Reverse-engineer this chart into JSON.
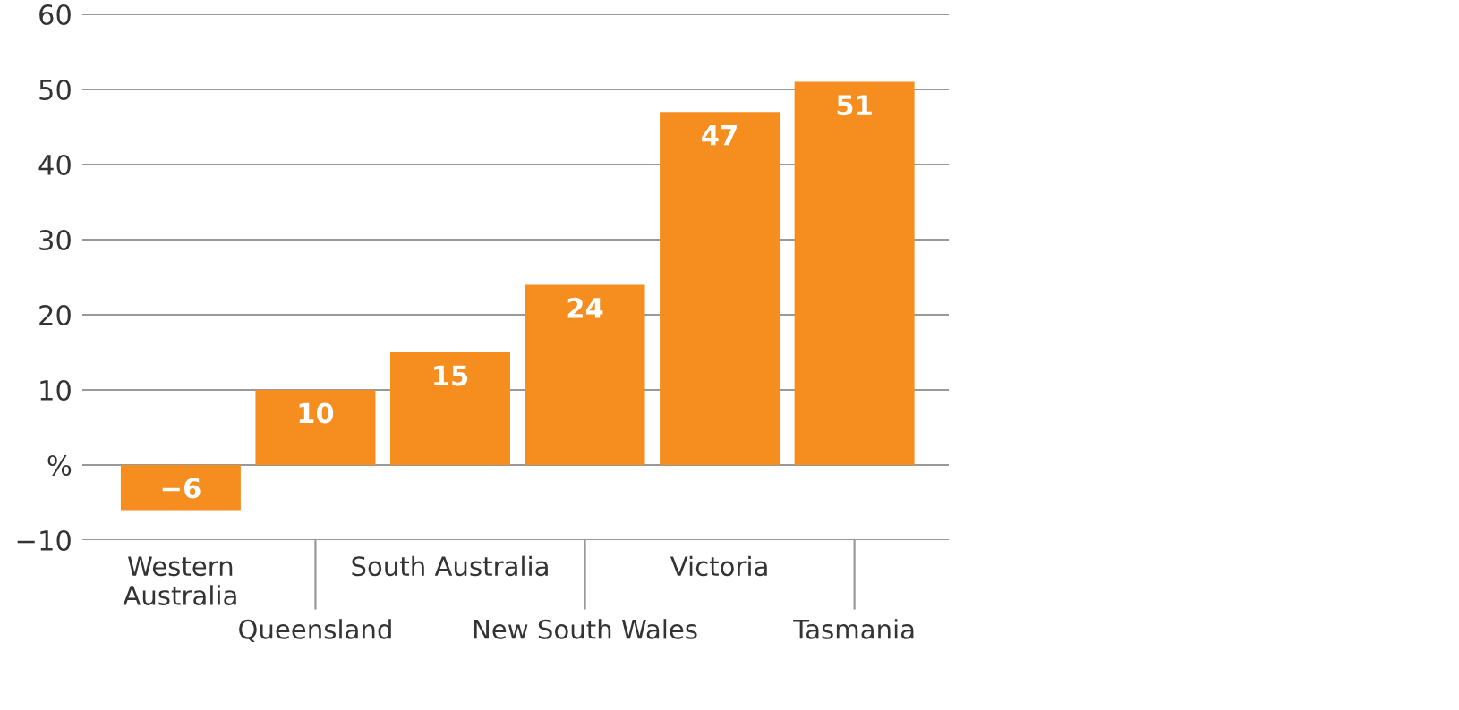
{
  "chart_data": {
    "type": "bar",
    "categories": [
      "Western\nAustralia",
      "Queensland",
      "South Australia",
      "New South Wales",
      "Victoria",
      "Tasmania"
    ],
    "values": [
      -6,
      10,
      15,
      24,
      47,
      51
    ],
    "color": "#f58d1f",
    "value_labels": [
      "−6",
      "10",
      "15",
      "24",
      "47",
      "51"
    ],
    "ylim": [
      -10,
      60
    ],
    "yticks": [
      {
        "value": -10,
        "label": "−10"
      },
      {
        "value": 0,
        "label": "%"
      },
      10,
      20,
      30,
      40,
      50,
      60
    ],
    "grid": "y"
  }
}
